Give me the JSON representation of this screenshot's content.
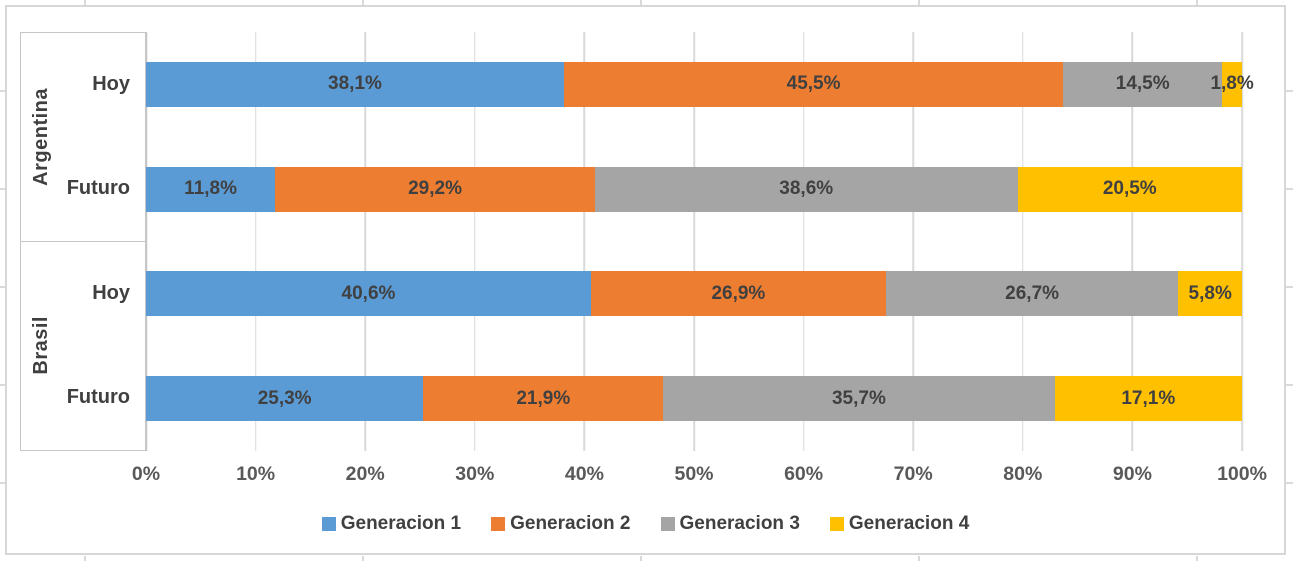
{
  "chart_data": {
    "type": "bar",
    "stacked": true,
    "orientation": "horizontal",
    "title": "",
    "xlabel": "",
    "ylabel": "",
    "xlim": [
      0,
      100
    ],
    "grid": true,
    "legend_position": "bottom",
    "x_ticks": [
      "0%",
      "10%",
      "20%",
      "30%",
      "40%",
      "50%",
      "60%",
      "70%",
      "80%",
      "90%",
      "100%"
    ],
    "series": [
      "Generacion 1",
      "Generacion 2",
      "Generacion 3",
      "Generacion 4"
    ],
    "series_colors": [
      "#5B9BD5",
      "#ED7D31",
      "#A5A5A5",
      "#FFC000"
    ],
    "groups": [
      {
        "label": "Argentina",
        "rows": [
          {
            "label": "Hoy",
            "values": [
              38.1,
              45.5,
              14.5,
              1.8
            ],
            "labels": [
              "38,1%",
              "45,5%",
              "14,5%",
              "1,8%"
            ]
          },
          {
            "label": "Futuro",
            "values": [
              11.8,
              29.2,
              38.6,
              20.5
            ],
            "labels": [
              "11,8%",
              "29,2%",
              "38,6%",
              "20,5%"
            ]
          }
        ]
      },
      {
        "label": "Brasil",
        "rows": [
          {
            "label": "Hoy",
            "values": [
              40.6,
              26.9,
              26.7,
              5.8
            ],
            "labels": [
              "40,6%",
              "26,9%",
              "26,7%",
              "5,8%"
            ]
          },
          {
            "label": "Futuro",
            "values": [
              25.3,
              21.9,
              35.7,
              17.1
            ],
            "labels": [
              "25,3%",
              "21,9%",
              "35,7%",
              "17,1%"
            ]
          }
        ]
      }
    ]
  },
  "colors": {
    "gridline": "#D9D9D9",
    "axis_line": "#C6C6C6",
    "chart_border": "#D7D7D7",
    "data_label_text": "#404040",
    "tick_label_text": "#595959"
  }
}
